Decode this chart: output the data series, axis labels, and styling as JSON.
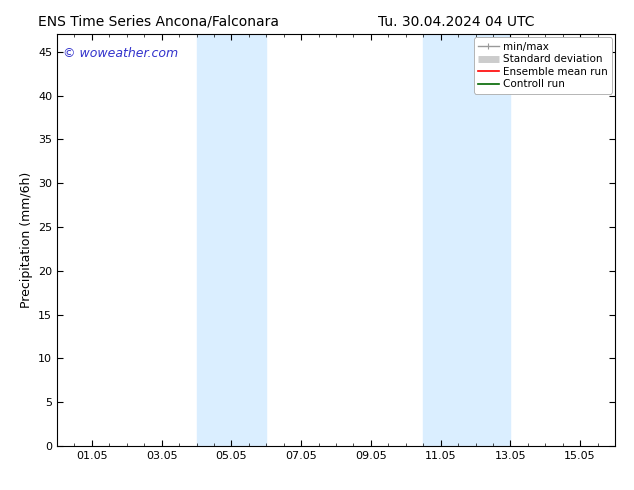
{
  "title_left": "ENS Time Series Ancona/Falconara",
  "title_right": "Tu. 30.04.2024 04 UTC",
  "ylabel": "Precipitation (mm/6h)",
  "xlabel": "",
  "background_color": "#ffffff",
  "plot_bg_color": "#ffffff",
  "watermark": "© woweather.com",
  "watermark_color": "#3333cc",
  "ylim": [
    0,
    47
  ],
  "yticks": [
    0,
    5,
    10,
    15,
    20,
    25,
    30,
    35,
    40,
    45
  ],
  "xlim": [
    0,
    16
  ],
  "xtick_labels": [
    "01.05",
    "03.05",
    "05.05",
    "07.05",
    "09.05",
    "11.05",
    "13.05",
    "15.05"
  ],
  "xtick_positions": [
    1,
    3,
    5,
    7,
    9,
    11,
    13,
    15
  ],
  "shaded_regions": [
    {
      "xmin": 4.0,
      "xmax": 6.0,
      "color": "#daeeff",
      "alpha": 1.0
    },
    {
      "xmin": 10.5,
      "xmax": 13.0,
      "color": "#daeeff",
      "alpha": 1.0
    }
  ],
  "legend_items": [
    {
      "label": "min/max",
      "color": "#999999",
      "lw": 1.0
    },
    {
      "label": "Standard deviation",
      "color": "#cccccc",
      "lw": 5
    },
    {
      "label": "Ensemble mean run",
      "color": "#ff0000",
      "lw": 1.2
    },
    {
      "label": "Controll run",
      "color": "#006600",
      "lw": 1.2
    }
  ],
  "title_fontsize": 10,
  "tick_fontsize": 8,
  "ylabel_fontsize": 9,
  "watermark_fontsize": 9,
  "legend_fontsize": 7.5
}
